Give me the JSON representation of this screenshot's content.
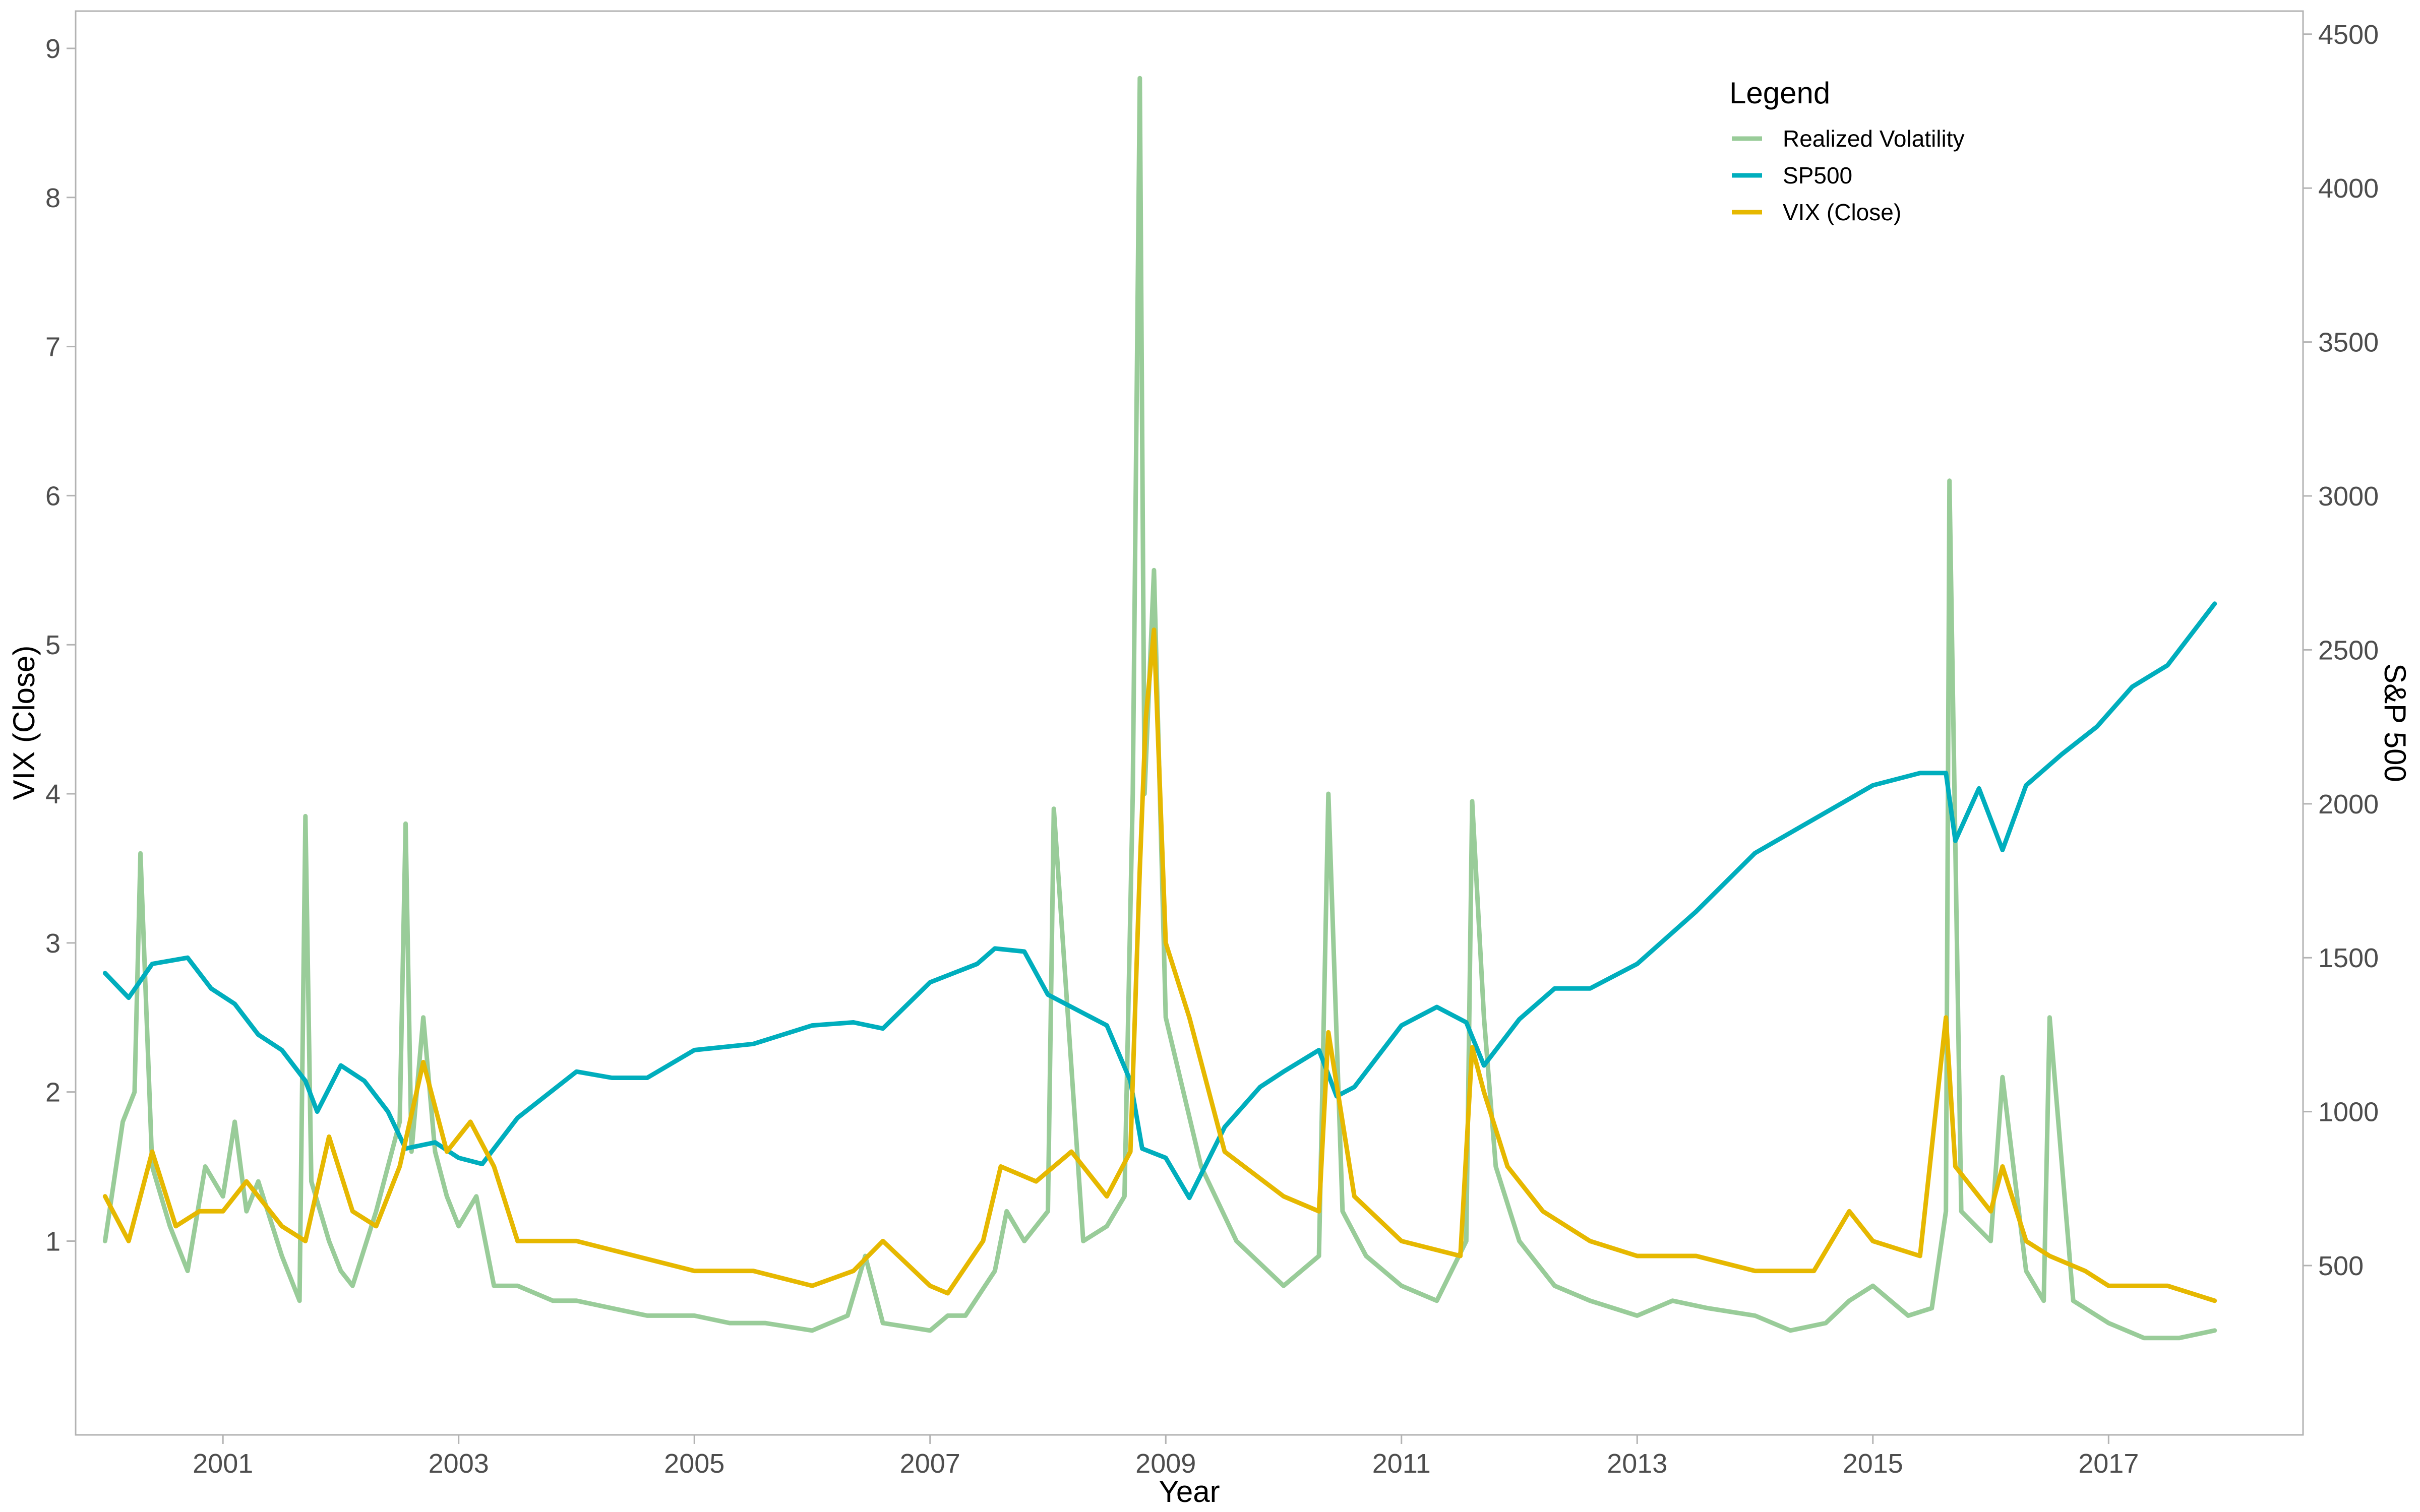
{
  "chart_data": {
    "type": "line",
    "title": "",
    "xlabel": "Year",
    "ylabel": "VIX (Close)",
    "ylabel_right": "S&P 500",
    "x_ticks": [
      "2001",
      "2003",
      "2005",
      "2007",
      "2009",
      "2011",
      "2013",
      "2015",
      "2017"
    ],
    "x_range": [
      1999.75,
      2018.65
    ],
    "y_left_ticks": [
      "1",
      "2",
      "3",
      "4",
      "5",
      "6",
      "7",
      "8",
      "9"
    ],
    "y_left_range": [
      -0.3,
      9.25
    ],
    "y_right_ticks": [
      "500",
      "1000",
      "1500",
      "2000",
      "2500",
      "3000",
      "3500",
      "4000",
      "4500"
    ],
    "y_right_range": [
      -50,
      4575
    ],
    "grid": false,
    "legend": {
      "title": "Legend",
      "placement": "top-right",
      "entries": [
        "Realized Volatility",
        "SP500",
        "VIX (Close)"
      ]
    },
    "series": [
      {
        "name": "Realized Volatility",
        "axis": "left",
        "color": "#99cc99",
        "x": [
          2000.0,
          2000.15,
          2000.25,
          2000.3,
          2000.4,
          2000.55,
          2000.7,
          2000.85,
          2001.0,
          2001.1,
          2001.2,
          2001.3,
          2001.5,
          2001.65,
          2001.7,
          2001.75,
          2001.9,
          2002.0,
          2002.1,
          2002.3,
          2002.5,
          2002.55,
          2002.6,
          2002.7,
          2002.8,
          2002.9,
          2003.0,
          2003.15,
          2003.3,
          2003.5,
          2003.8,
          2004.0,
          2004.3,
          2004.6,
          2005.0,
          2005.3,
          2005.6,
          2006.0,
          2006.3,
          2006.45,
          2006.6,
          2007.0,
          2007.15,
          2007.3,
          2007.55,
          2007.65,
          2007.8,
          2008.0,
          2008.05,
          2008.3,
          2008.5,
          2008.65,
          2008.72,
          2008.78,
          2008.82,
          2008.9,
          2009.0,
          2009.15,
          2009.3,
          2009.6,
          2010.0,
          2010.3,
          2010.38,
          2010.5,
          2010.7,
          2011.0,
          2011.3,
          2011.55,
          2011.6,
          2011.7,
          2011.8,
          2012.0,
          2012.3,
          2012.6,
          2013.0,
          2013.3,
          2013.6,
          2014.0,
          2014.3,
          2014.6,
          2014.8,
          2015.0,
          2015.3,
          2015.5,
          2015.62,
          2015.65,
          2015.75,
          2016.0,
          2016.1,
          2016.3,
          2016.45,
          2016.5,
          2016.7,
          2017.0,
          2017.3,
          2017.6,
          2017.9
        ],
        "y": [
          1.0,
          1.8,
          2.0,
          3.6,
          1.5,
          1.1,
          0.8,
          1.5,
          1.3,
          1.8,
          1.2,
          1.4,
          0.9,
          0.6,
          3.85,
          1.4,
          1.0,
          0.8,
          0.7,
          1.2,
          1.8,
          3.8,
          1.6,
          2.5,
          1.6,
          1.3,
          1.1,
          1.3,
          0.7,
          0.7,
          0.6,
          0.6,
          0.55,
          0.5,
          0.5,
          0.45,
          0.45,
          0.4,
          0.5,
          0.9,
          0.45,
          0.4,
          0.5,
          0.5,
          0.8,
          1.2,
          1.0,
          1.2,
          3.9,
          1.0,
          1.1,
          1.3,
          4.0,
          8.8,
          4.0,
          5.5,
          2.5,
          2.0,
          1.5,
          1.0,
          0.7,
          0.9,
          4.0,
          1.2,
          0.9,
          0.7,
          0.6,
          1.0,
          3.95,
          2.5,
          1.5,
          1.0,
          0.7,
          0.6,
          0.5,
          0.6,
          0.55,
          0.5,
          0.4,
          0.45,
          0.6,
          0.7,
          0.5,
          0.55,
          1.2,
          6.1,
          1.2,
          1.0,
          2.1,
          0.8,
          0.6,
          2.5,
          0.6,
          0.45,
          0.35,
          0.35,
          0.4
        ]
      },
      {
        "name": "SP500",
        "axis": "right",
        "color": "#00aebd",
        "x": [
          2000.0,
          2000.2,
          2000.4,
          2000.7,
          2000.9,
          2001.1,
          2001.3,
          2001.5,
          2001.7,
          2001.8,
          2002.0,
          2002.2,
          2002.4,
          2002.55,
          2002.8,
          2003.0,
          2003.2,
          2003.5,
          2004.0,
          2004.3,
          2004.6,
          2005.0,
          2005.5,
          2006.0,
          2006.35,
          2006.6,
          2007.0,
          2007.4,
          2007.55,
          2007.8,
          2008.0,
          2008.3,
          2008.5,
          2008.7,
          2008.8,
          2009.0,
          2009.2,
          2009.5,
          2009.8,
          2010.0,
          2010.3,
          2010.45,
          2010.6,
          2011.0,
          2011.3,
          2011.55,
          2011.7,
          2012.0,
          2012.3,
          2012.6,
          2013.0,
          2013.5,
          2014.0,
          2014.5,
          2015.0,
          2015.4,
          2015.62,
          2015.7,
          2015.9,
          2016.1,
          2016.3,
          2016.6,
          2016.9,
          2017.2,
          2017.5,
          2017.9
        ],
        "y": [
          1450,
          1370,
          1480,
          1500,
          1400,
          1350,
          1250,
          1200,
          1100,
          1000,
          1150,
          1100,
          1000,
          880,
          900,
          850,
          830,
          980,
          1130,
          1110,
          1110,
          1200,
          1220,
          1280,
          1290,
          1270,
          1420,
          1480,
          1530,
          1520,
          1380,
          1320,
          1280,
          1100,
          880,
          850,
          720,
          950,
          1080,
          1130,
          1200,
          1050,
          1080,
          1280,
          1340,
          1290,
          1150,
          1300,
          1400,
          1400,
          1480,
          1650,
          1840,
          1950,
          2060,
          2100,
          2100,
          1880,
          2050,
          1850,
          2060,
          2160,
          2250,
          2380,
          2450,
          2650
        ]
      },
      {
        "name": "VIX (Close)",
        "axis": "left",
        "color": "#e6b800",
        "x": [
          2000.0,
          2000.2,
          2000.4,
          2000.6,
          2000.8,
          2001.0,
          2001.2,
          2001.5,
          2001.7,
          2001.9,
          2002.1,
          2002.3,
          2002.5,
          2002.7,
          2002.9,
          2003.1,
          2003.3,
          2003.5,
          2004.0,
          2004.5,
          2005.0,
          2005.5,
          2006.0,
          2006.35,
          2006.6,
          2007.0,
          2007.15,
          2007.45,
          2007.6,
          2007.9,
          2008.2,
          2008.5,
          2008.7,
          2008.78,
          2008.83,
          2008.9,
          2009.0,
          2009.2,
          2009.5,
          2010.0,
          2010.3,
          2010.38,
          2010.6,
          2011.0,
          2011.5,
          2011.6,
          2011.7,
          2011.9,
          2012.2,
          2012.6,
          2013.0,
          2013.5,
          2014.0,
          2014.5,
          2014.8,
          2015.0,
          2015.4,
          2015.62,
          2015.7,
          2016.0,
          2016.1,
          2016.3,
          2016.5,
          2016.8,
          2017.0,
          2017.5,
          2017.9
        ],
        "y": [
          1.3,
          1.0,
          1.6,
          1.1,
          1.2,
          1.2,
          1.4,
          1.1,
          1.0,
          1.7,
          1.2,
          1.1,
          1.5,
          2.2,
          1.6,
          1.8,
          1.5,
          1.0,
          1.0,
          0.9,
          0.8,
          0.8,
          0.7,
          0.8,
          1.0,
          0.7,
          0.65,
          1.0,
          1.5,
          1.4,
          1.6,
          1.3,
          1.6,
          3.5,
          4.5,
          5.1,
          3.0,
          2.5,
          1.6,
          1.3,
          1.2,
          2.4,
          1.3,
          1.0,
          0.9,
          2.3,
          2.0,
          1.5,
          1.2,
          1.0,
          0.9,
          0.9,
          0.8,
          0.8,
          1.2,
          1.0,
          0.9,
          2.5,
          1.5,
          1.2,
          1.5,
          1.0,
          0.9,
          0.8,
          0.7,
          0.7,
          0.6
        ]
      }
    ]
  }
}
